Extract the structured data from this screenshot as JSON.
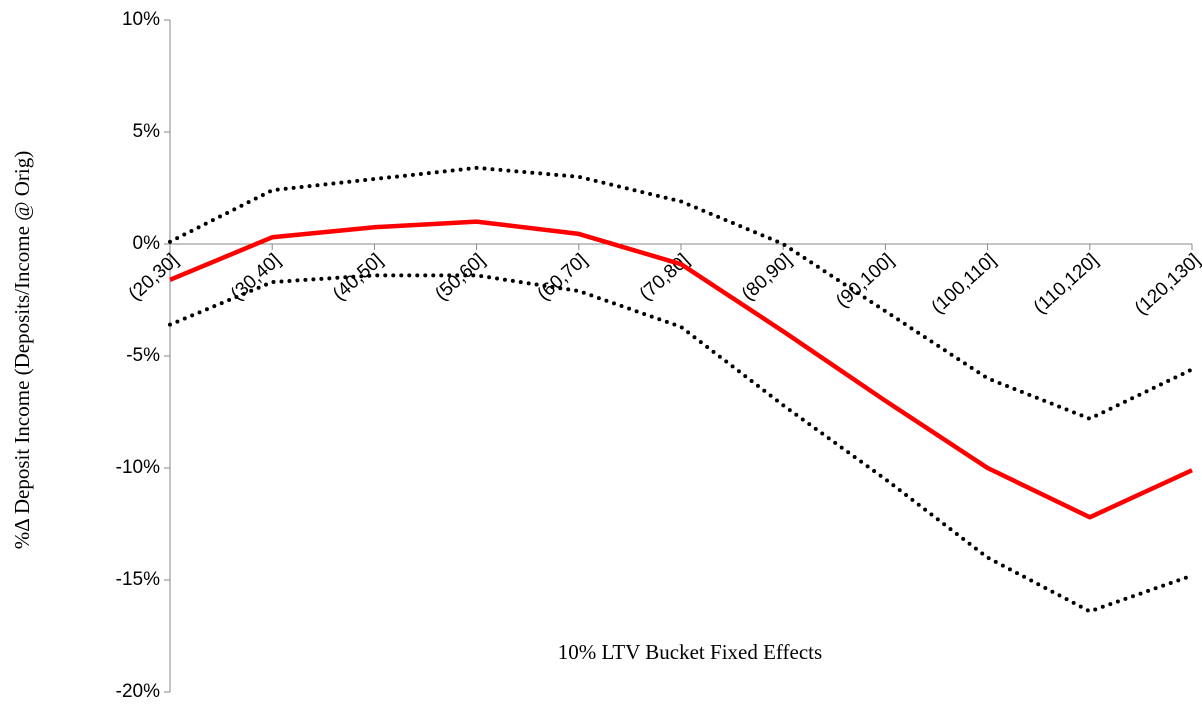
{
  "chart_data": {
    "type": "line",
    "xlabel": "10% LTV Bucket Fixed Effects",
    "ylabel": "%Δ Deposit Income (Deposits/Income @ Orig)",
    "categories": [
      "(20,30]",
      "(30,40]",
      "(40,50]",
      "(50,60]",
      "(60,70]",
      "(70,80]",
      "(80,90]",
      "(90,100]",
      "(100,110]",
      "(110,120]",
      "(120,130]"
    ],
    "series": [
      {
        "color": "#ff0000",
        "style": "solid",
        "values": [
          -1.6,
          0.3,
          0.75,
          1.0,
          0.45,
          -0.9,
          -3.9,
          -7.0,
          -10.0,
          -12.2,
          -10.1
        ]
      },
      {
        "color": "#000000",
        "style": "dotted",
        "values": [
          0.1,
          2.4,
          2.9,
          3.4,
          3.0,
          1.9,
          0.0,
          -3.0,
          -6.0,
          -7.8,
          -5.6
        ]
      },
      {
        "color": "#000000",
        "style": "dotted",
        "values": [
          -3.6,
          -1.7,
          -1.4,
          -1.4,
          -2.1,
          -3.7,
          -7.2,
          -10.5,
          -14.0,
          -16.4,
          -14.8
        ]
      }
    ],
    "ylim": [
      -20,
      10
    ],
    "yticks": [
      {
        "value": -20,
        "label": "-20%"
      },
      {
        "value": -15,
        "label": "-15%"
      },
      {
        "value": -10,
        "label": "-10%"
      },
      {
        "value": -5,
        "label": "-5%"
      },
      {
        "value": 0,
        "label": "0%"
      },
      {
        "value": 5,
        "label": "5%"
      },
      {
        "value": 10,
        "label": "10%"
      }
    ],
    "grid": false
  }
}
